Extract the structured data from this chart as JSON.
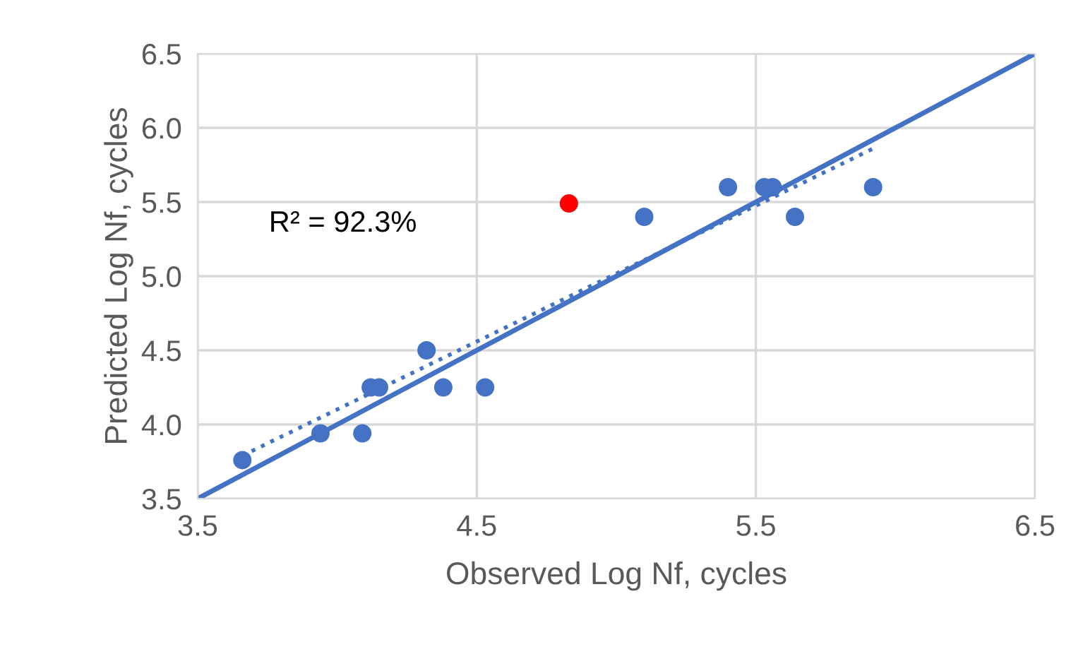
{
  "chart_data": {
    "type": "scatter",
    "xlabel": "Observed Log Nf, cycles",
    "ylabel": "Predicted Log Nf, cycles",
    "annotations": [
      "R² = 92.3%"
    ],
    "series": [
      {
        "color": "#4472c4",
        "marker": "circle",
        "x": [
          3.66,
          3.94,
          4.09,
          4.12,
          4.15,
          4.32,
          4.38,
          4.53,
          5.1,
          5.4,
          5.53,
          5.56,
          5.64,
          5.92
        ],
        "values": [
          3.76,
          3.94,
          3.94,
          4.25,
          4.25,
          4.5,
          4.25,
          4.25,
          5.4,
          5.6,
          5.6,
          5.6,
          5.4,
          5.6
        ]
      },
      {
        "color": "#ff0000",
        "marker": "circle",
        "x": [
          4.83
        ],
        "values": [
          5.49
        ]
      },
      {
        "type": "line",
        "color": "#4472c4",
        "line_style": "solid",
        "x": [
          3.5,
          6.5
        ],
        "values": [
          3.5,
          6.5
        ]
      },
      {
        "type": "line",
        "color": "#4472c4",
        "line_style": "dotted",
        "x": [
          3.66,
          5.92
        ],
        "values": [
          3.79,
          5.86
        ]
      }
    ],
    "xlim": [
      3.5,
      6.5
    ],
    "ylim": [
      3.5,
      6.5
    ],
    "xticks": [
      3.5,
      4.5,
      5.5,
      6.5
    ],
    "yticks": [
      3.5,
      {
        "value": 4,
        "label": "4.0"
      },
      4.5,
      {
        "value": 5,
        "label": "5.0"
      },
      5.5,
      {
        "value": 6,
        "label": "6.0"
      },
      6.5
    ],
    "grid": true,
    "legend": false
  }
}
